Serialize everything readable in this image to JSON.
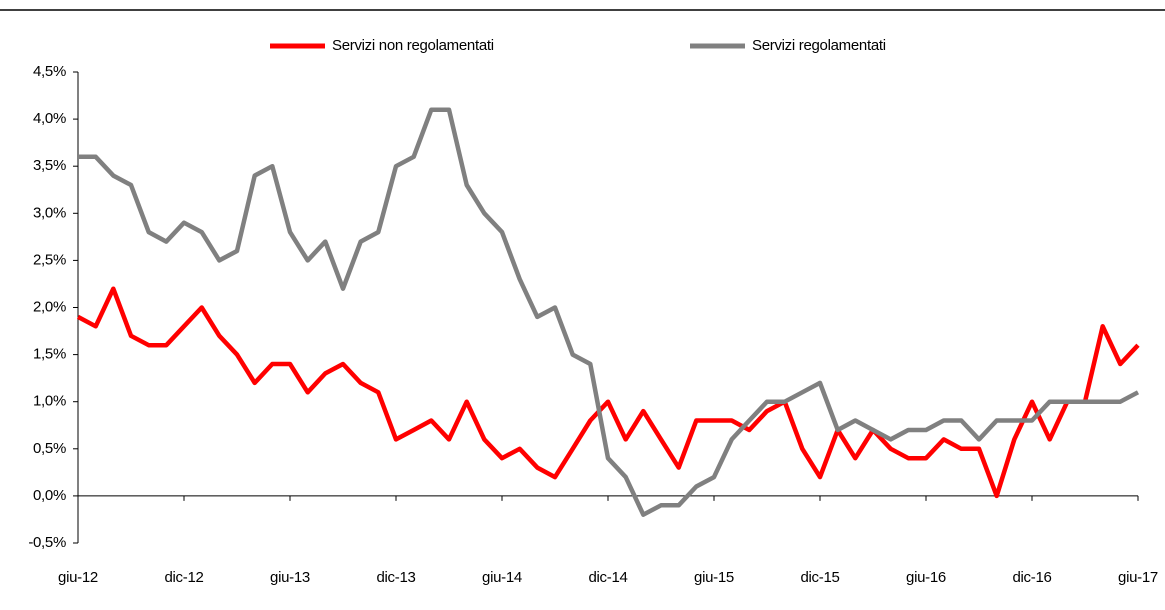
{
  "chart_data": {
    "type": "line",
    "categories": [
      "giu-12",
      null,
      null,
      null,
      null,
      null,
      "dic-12",
      null,
      null,
      null,
      null,
      null,
      "giu-13",
      null,
      null,
      null,
      null,
      null,
      "dic-13",
      null,
      null,
      null,
      null,
      null,
      "giu-14",
      null,
      null,
      null,
      null,
      null,
      "dic-14",
      null,
      null,
      null,
      null,
      null,
      "giu-15",
      null,
      null,
      null,
      null,
      null,
      "dic-15",
      null,
      null,
      null,
      null,
      null,
      "giu-16",
      null,
      null,
      null,
      null,
      null,
      "dic-16",
      null,
      null,
      null,
      null,
      null,
      "giu-17"
    ],
    "series": [
      {
        "name": "Servizi non regolamentati",
        "color": "#ff0000",
        "values": [
          1.9,
          1.8,
          2.2,
          1.7,
          1.6,
          1.6,
          1.8,
          2.0,
          1.7,
          1.5,
          1.2,
          1.4,
          1.4,
          1.1,
          1.3,
          1.4,
          1.2,
          1.1,
          0.6,
          0.7,
          0.8,
          0.6,
          1.0,
          0.6,
          0.4,
          0.5,
          0.3,
          0.2,
          0.5,
          0.8,
          1.0,
          0.6,
          0.9,
          0.6,
          0.3,
          0.8,
          0.8,
          0.8,
          0.7,
          0.9,
          1.0,
          0.5,
          0.2,
          0.7,
          0.4,
          0.7,
          0.5,
          0.4,
          0.4,
          0.6,
          0.5,
          0.5,
          0.0,
          0.6,
          1.0,
          0.6,
          1.0,
          1.0,
          1.8,
          1.4,
          1.6
        ]
      },
      {
        "name": "Servizi regolamentati",
        "color": "#808080",
        "values": [
          3.6,
          3.6,
          3.4,
          3.3,
          2.8,
          2.7,
          2.9,
          2.8,
          2.5,
          2.6,
          3.4,
          3.5,
          2.8,
          2.5,
          2.7,
          2.2,
          2.7,
          2.8,
          3.5,
          3.6,
          4.1,
          4.1,
          3.3,
          3.0,
          2.8,
          2.3,
          1.9,
          2.0,
          1.5,
          1.4,
          0.4,
          0.2,
          -0.2,
          -0.1,
          -0.1,
          0.1,
          0.2,
          0.6,
          0.8,
          1.0,
          1.0,
          1.1,
          1.2,
          0.7,
          0.8,
          0.7,
          0.6,
          0.7,
          0.7,
          0.8,
          0.8,
          0.6,
          0.8,
          0.8,
          0.8,
          1.0,
          1.0,
          1.0,
          1.0,
          1.0,
          1.1
        ]
      }
    ],
    "ylim": [
      -0.5,
      4.5
    ],
    "yticks": [
      {
        "value": -0.5,
        "label": "-0,5%"
      },
      {
        "value": 0,
        "label": "0,0%"
      },
      {
        "value": 0.5,
        "label": "0,5%"
      },
      {
        "value": 1,
        "label": "1,0%"
      },
      {
        "value": 1.5,
        "label": "1,5%"
      },
      {
        "value": 2,
        "label": "2,0%"
      },
      {
        "value": 2.5,
        "label": "2,5%"
      },
      {
        "value": 3,
        "label": "3,0%"
      },
      {
        "value": 3.5,
        "label": "3,5%"
      },
      {
        "value": 4,
        "label": "4,0%"
      },
      {
        "value": 4.5,
        "label": "4,5%"
      }
    ],
    "grid": false,
    "legend": "top"
  }
}
